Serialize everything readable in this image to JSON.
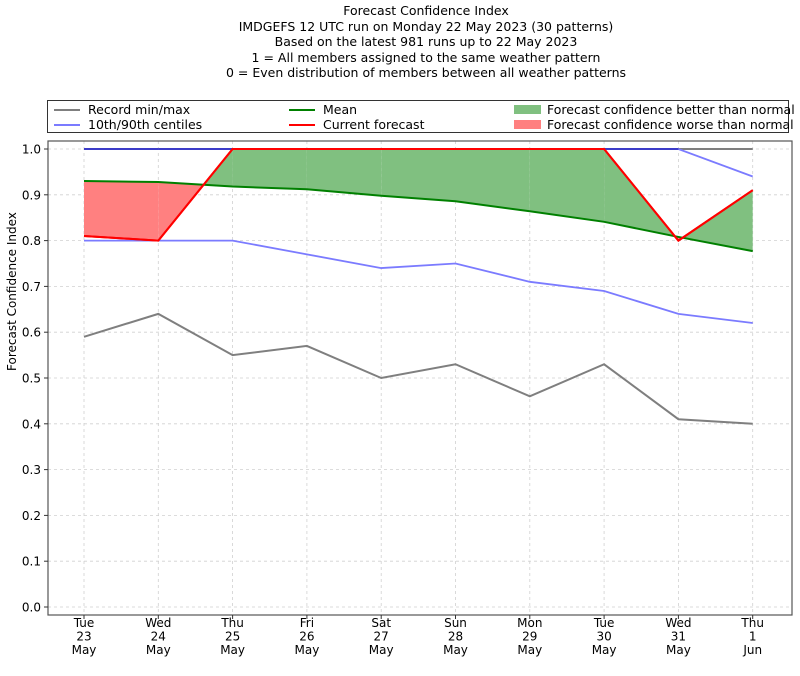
{
  "chart_data": {
    "type": "line",
    "title_lines": [
      "Forecast Confidence Index",
      "IMDGEFS 12 UTC run on Monday 22 May 2023 (30 patterns)",
      "Based on the latest 981 runs up to 22 May 2023",
      "1 = All members assigned to the same weather pattern",
      "0 = Even distribution of members between all weather patterns"
    ],
    "ylabel": "Forecast Confidence Index",
    "xlabel": "",
    "ylim": [
      0.0,
      1.0
    ],
    "yticks": [
      "0.0",
      "0.1",
      "0.2",
      "0.3",
      "0.4",
      "0.5",
      "0.6",
      "0.7",
      "0.8",
      "0.9",
      "1.0"
    ],
    "grid": true,
    "legend_position": "top",
    "categories": [
      [
        "Tue",
        "23",
        "May"
      ],
      [
        "Wed",
        "24",
        "May"
      ],
      [
        "Thu",
        "25",
        "May"
      ],
      [
        "Fri",
        "26",
        "May"
      ],
      [
        "Sat",
        "27",
        "May"
      ],
      [
        "Sun",
        "28",
        "May"
      ],
      [
        "Mon",
        "29",
        "May"
      ],
      [
        "Tue",
        "30",
        "May"
      ],
      [
        "Wed",
        "31",
        "May"
      ],
      [
        "Thu",
        "1",
        "Jun"
      ]
    ],
    "series": [
      {
        "name": "Record max",
        "color": "#7f7f7f",
        "values": [
          1.0,
          1.0,
          1.0,
          1.0,
          1.0,
          1.0,
          1.0,
          1.0,
          1.0,
          1.0
        ]
      },
      {
        "name": "Record min",
        "color": "#7f7f7f",
        "values": [
          0.59,
          0.64,
          0.55,
          0.57,
          0.5,
          0.53,
          0.46,
          0.53,
          0.41,
          0.4
        ]
      },
      {
        "name": "90th centile",
        "color": "#7b7bff",
        "values": [
          1.0,
          1.0,
          1.0,
          1.0,
          1.0,
          1.0,
          1.0,
          1.0,
          1.0,
          0.94
        ]
      },
      {
        "name": "10th centile",
        "color": "#7b7bff",
        "values": [
          0.8,
          0.8,
          0.8,
          0.77,
          0.74,
          0.75,
          0.71,
          0.69,
          0.64,
          0.62
        ]
      },
      {
        "name": "Mean",
        "color": "#008000",
        "values": [
          0.93,
          0.928,
          0.918,
          0.912,
          0.898,
          0.886,
          0.864,
          0.841,
          0.808,
          0.777
        ]
      },
      {
        "name": "Current forecast",
        "color": "#ff0000",
        "values": [
          0.81,
          0.8,
          1.0,
          1.0,
          1.0,
          1.0,
          1.0,
          1.0,
          0.8,
          0.91
        ]
      }
    ],
    "fills": {
      "better_color": "#80c080",
      "worse_color": "#ff8080"
    },
    "legend": [
      {
        "label": "Record min/max",
        "kind": "line",
        "color": "#7f7f7f"
      },
      {
        "label": "10th/90th centiles",
        "kind": "line",
        "color": "#7b7bff"
      },
      {
        "label": "Mean",
        "kind": "line",
        "color": "#008000"
      },
      {
        "label": "Current forecast",
        "kind": "line",
        "color": "#ff0000"
      },
      {
        "label": "Forecast confidence better than normal",
        "kind": "patch",
        "color": "#80c080"
      },
      {
        "label": "Forecast confidence worse than normal",
        "kind": "patch",
        "color": "#ff8080"
      }
    ]
  }
}
